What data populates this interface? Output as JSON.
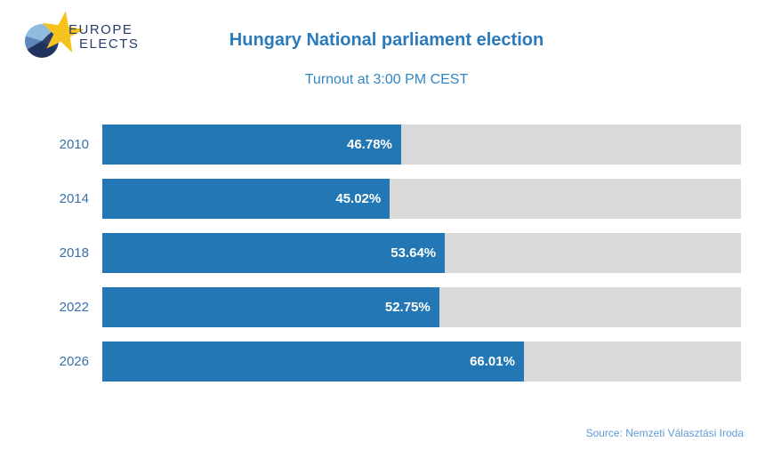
{
  "logo": {
    "line1": "EUROPE",
    "line2": "ELECTS"
  },
  "header": {
    "title": "Hungary National parliament election",
    "subtitle": "Turnout at 3:00 PM CEST"
  },
  "source": "Source: Nemzeti Választási Iroda",
  "colors": {
    "bar_blue": "#2277b4",
    "track_gray": "#d9d9d9",
    "title_blue": "#2a7abc",
    "subtitle_blue": "#3287c4",
    "year_label_blue": "#3a70a8",
    "value_label": "#ffffff",
    "logo_navy": "#263c6b",
    "logo_star_yellow": "#f6c31c",
    "logo_pie_light": "#8fbbdd",
    "logo_pie_mid": "#5d87b9",
    "logo_pie_dark": "#22325f",
    "source_blue": "#5f9bd4"
  },
  "icons": {
    "logo_pie": "pie-chart-icon",
    "logo_star": "star-icon"
  },
  "chart_data": {
    "type": "bar",
    "orientation": "horizontal",
    "title": "Hungary National parliament election",
    "subtitle": "Turnout at 3:00 PM CEST",
    "categories": [
      "2010",
      "2014",
      "2018",
      "2022",
      "2026"
    ],
    "values": [
      46.78,
      45.02,
      53.64,
      52.75,
      66.01
    ],
    "value_labels": [
      "46.78%",
      "45.02%",
      "53.64%",
      "52.75%",
      "66.01%"
    ],
    "xlabel": "",
    "ylabel": "",
    "xlim": [
      0,
      100
    ],
    "grid": false,
    "legend": false,
    "bar_background_full_scale": true
  }
}
